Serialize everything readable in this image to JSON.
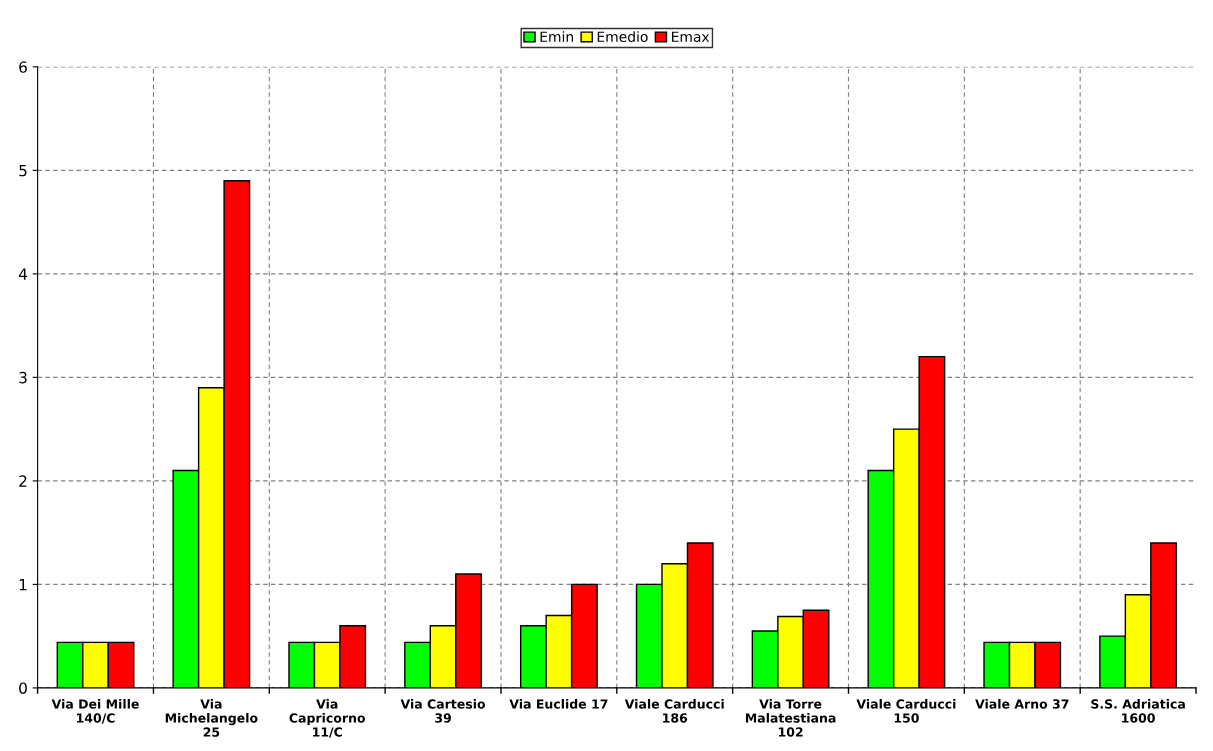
{
  "chart_data": {
    "type": "bar",
    "categories": [
      "Via Dei Mille\n140/C",
      "Via\nMichelangelo\n25",
      "Via\nCapricorno\n11/C",
      "Via Cartesio\n39",
      "Via Euclide 17",
      "Viale Carducci\n186",
      "Via Torre\nMalatestiana\n102",
      "Viale Carducci\n150",
      "Viale Arno 37",
      "S.S. Adriatica\n1600"
    ],
    "series": [
      {
        "name": "Emin",
        "color": "#00ff00",
        "values": [
          0.44,
          2.1,
          0.44,
          0.44,
          0.6,
          1.0,
          0.55,
          2.1,
          0.44,
          0.5
        ]
      },
      {
        "name": "Emedio",
        "color": "#ffff00",
        "values": [
          0.44,
          2.9,
          0.44,
          0.6,
          0.7,
          1.2,
          0.69,
          2.5,
          0.44,
          0.9
        ]
      },
      {
        "name": "Emax",
        "color": "#ff0000",
        "values": [
          0.44,
          4.9,
          0.6,
          1.1,
          1.0,
          1.4,
          0.75,
          3.2,
          0.44,
          1.4
        ]
      }
    ],
    "ylim": [
      0,
      6
    ],
    "yticks": [
      0,
      1,
      2,
      3,
      4,
      5,
      6
    ],
    "grid": true,
    "legend": "top"
  }
}
